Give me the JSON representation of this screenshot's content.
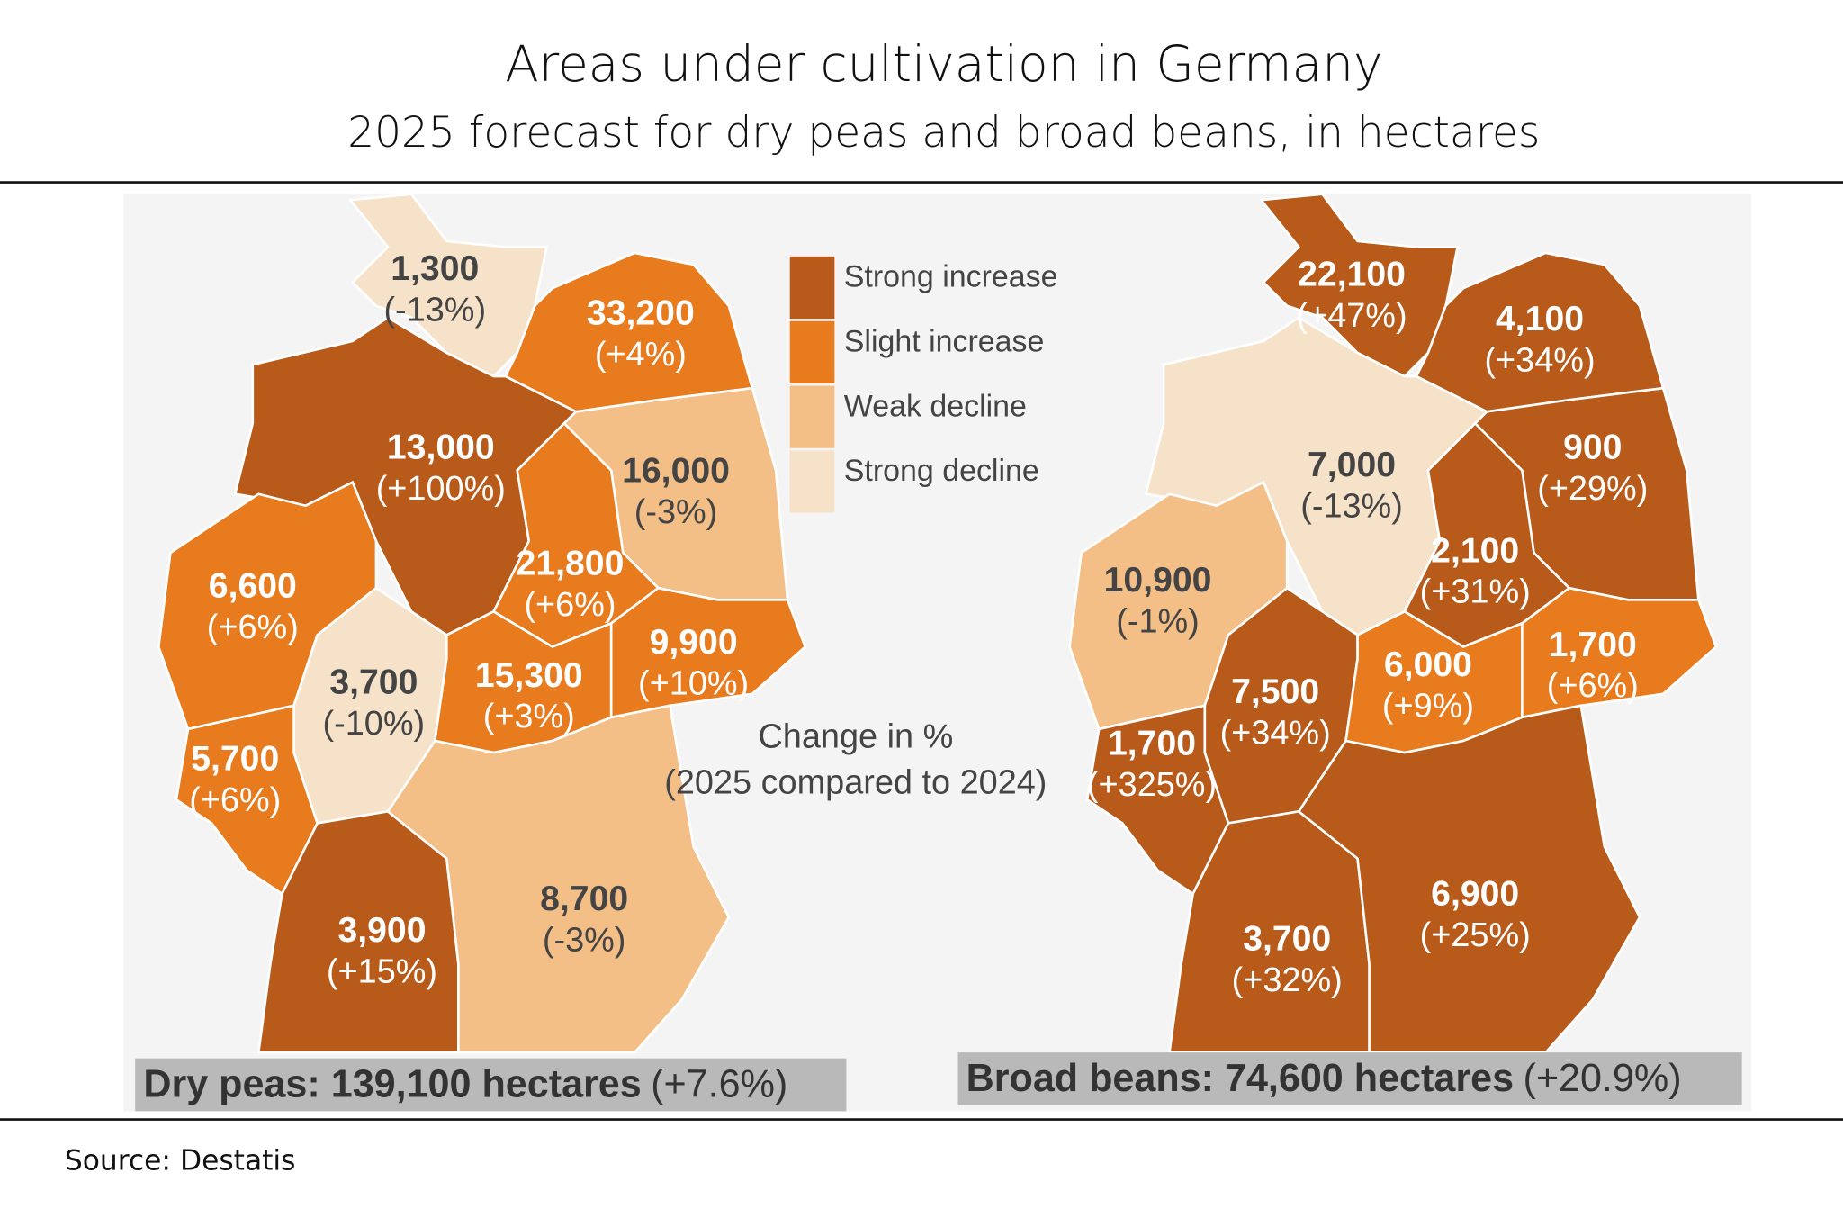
{
  "header": {
    "title": "Areas under cultivation in Germany",
    "subtitle": "2025 forecast for dry peas and broad beans, in hectares"
  },
  "legend": {
    "items": [
      {
        "label": "Strong increase",
        "color": "#b85a1a"
      },
      {
        "label": "Slight increase",
        "color": "#e87b1e"
      },
      {
        "label": "Weak decline",
        "color": "#f4bf87"
      },
      {
        "label": "Strong decline",
        "color": "#f6e2c8"
      }
    ],
    "note": [
      "Change in %",
      "(2025 compared to 2024)"
    ]
  },
  "maps": [
    {
      "caption": {
        "label": "Dry peas: 139,100 hectares",
        "change": "(+7.6%)"
      },
      "regions": [
        {
          "value": "1,300",
          "change": "(-13%)",
          "color": "#f6e2c8"
        },
        {
          "value": "33,200",
          "change": "(+4%)",
          "color": "#e87b1e"
        },
        {
          "value": "13,000",
          "change": "(+100%)",
          "color": "#b85a1a"
        },
        {
          "value": "16,000",
          "change": "(-3%)",
          "color": "#f4bf87"
        },
        {
          "value": "6,600",
          "change": "(+6%)",
          "color": "#e87b1e"
        },
        {
          "value": "21,800",
          "change": "(+6%)",
          "color": "#e87b1e"
        },
        {
          "value": "3,700",
          "change": "(-10%)",
          "color": "#f6e2c8"
        },
        {
          "value": "15,300",
          "change": "(+3%)",
          "color": "#e87b1e"
        },
        {
          "value": "9,900",
          "change": "(+10%)",
          "color": "#e87b1e"
        },
        {
          "value": "5,700",
          "change": "(+6%)",
          "color": "#e87b1e"
        },
        {
          "value": "3,900",
          "change": "(+15%)",
          "color": "#b85a1a"
        },
        {
          "value": "8,700",
          "change": "(-3%)",
          "color": "#f4bf87"
        }
      ]
    },
    {
      "caption": {
        "label": "Broad beans: 74,600 hectares",
        "change": "(+20.9%)"
      },
      "regions": [
        {
          "value": "22,100",
          "change": "(+47%)",
          "color": "#b85a1a"
        },
        {
          "value": "4,100",
          "change": "(+34%)",
          "color": "#b85a1a"
        },
        {
          "value": "7,000",
          "change": "(-13%)",
          "color": "#f6e2c8"
        },
        {
          "value": "900",
          "change": "(+29%)",
          "color": "#b85a1a"
        },
        {
          "value": "10,900",
          "change": "(-1%)",
          "color": "#f4bf87"
        },
        {
          "value": "2,100",
          "change": "(+31%)",
          "color": "#b85a1a"
        },
        {
          "value": "7,500",
          "change": "(+34%)",
          "color": "#b85a1a"
        },
        {
          "value": "6,000",
          "change": "(+9%)",
          "color": "#e87b1e"
        },
        {
          "value": "1,700",
          "change": "(+6%)",
          "color": "#e87b1e"
        },
        {
          "value": "1,700",
          "change": "(+325%)",
          "color": "#b85a1a"
        },
        {
          "value": "3,700",
          "change": "(+32%)",
          "color": "#b85a1a"
        },
        {
          "value": "6,900",
          "change": "(+25%)",
          "color": "#b85a1a"
        }
      ]
    }
  ],
  "footer": {
    "source": "Source: Destatis"
  }
}
